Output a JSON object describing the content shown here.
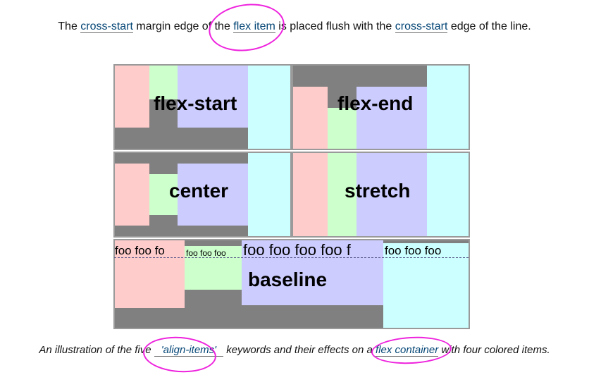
{
  "intro": {
    "t1": "The ",
    "link1": "cross-start",
    "t2": " margin edge of the ",
    "link2": "flex item",
    "t3": " is placed flush with the ",
    "link3": "cross-start",
    "t4": " edge of the line."
  },
  "panels": {
    "flex_start": "flex-start",
    "flex_end": "flex-end",
    "center": "center",
    "stretch": "stretch",
    "baseline": "baseline"
  },
  "baseline_items": {
    "item1": "foo foo fo",
    "item2": "foo foo foo",
    "item3": "foo foo foo foo f",
    "item4": "foo foo foo"
  },
  "caption": {
    "t1": "An illustration of the five ",
    "code": "'align-items'",
    "t2": " keywords and their effects on a ",
    "link": "flex container",
    "t3": " with four colored items."
  },
  "colors": {
    "item_pink": "#ffcccc",
    "item_green": "#ccffcc",
    "item_lavender": "#ccccff",
    "item_cyan": "#ccffff",
    "container_gray": "#808080",
    "annotation_magenta": "#ee22dd",
    "link_blue": "#034575"
  }
}
